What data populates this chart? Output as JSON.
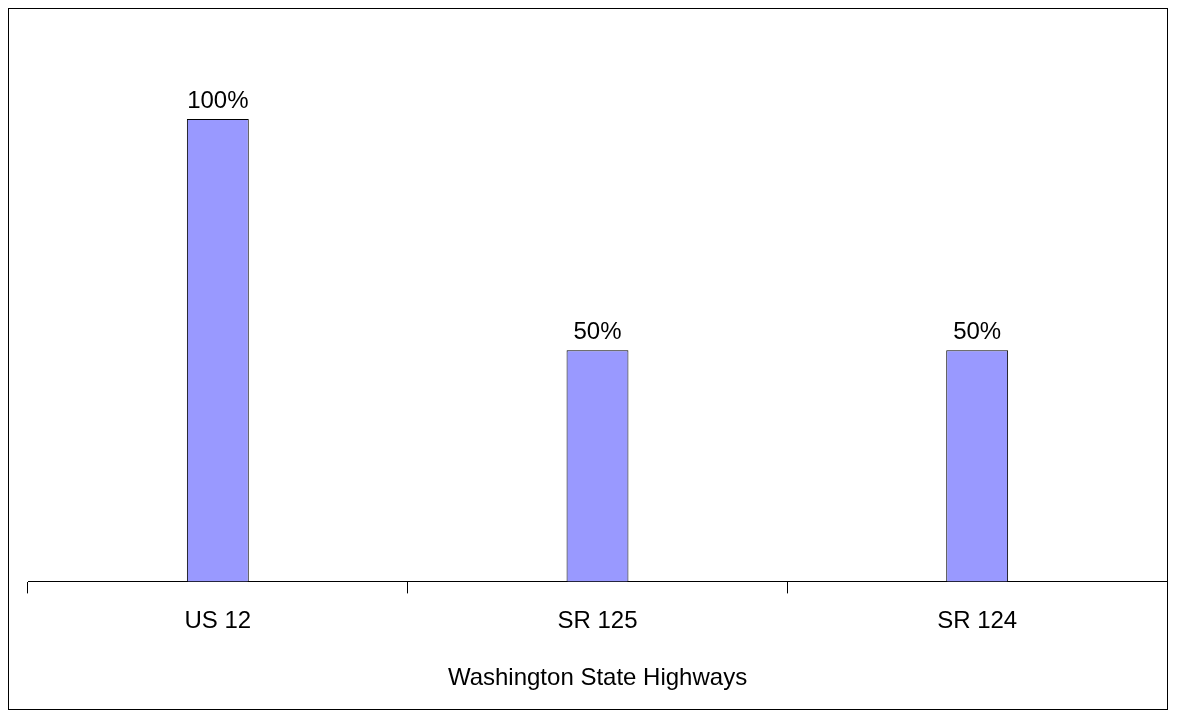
{
  "chart_data": {
    "type": "bar",
    "xlabel": "Washington State Highways",
    "categories": [
      "US 12",
      "SR 125",
      "SR 124"
    ],
    "values": [
      100,
      50,
      50
    ],
    "color": "#9999ff",
    "value_labels": [
      "100%",
      "50%",
      "50%"
    ],
    "grid": false,
    "legend": false
  }
}
